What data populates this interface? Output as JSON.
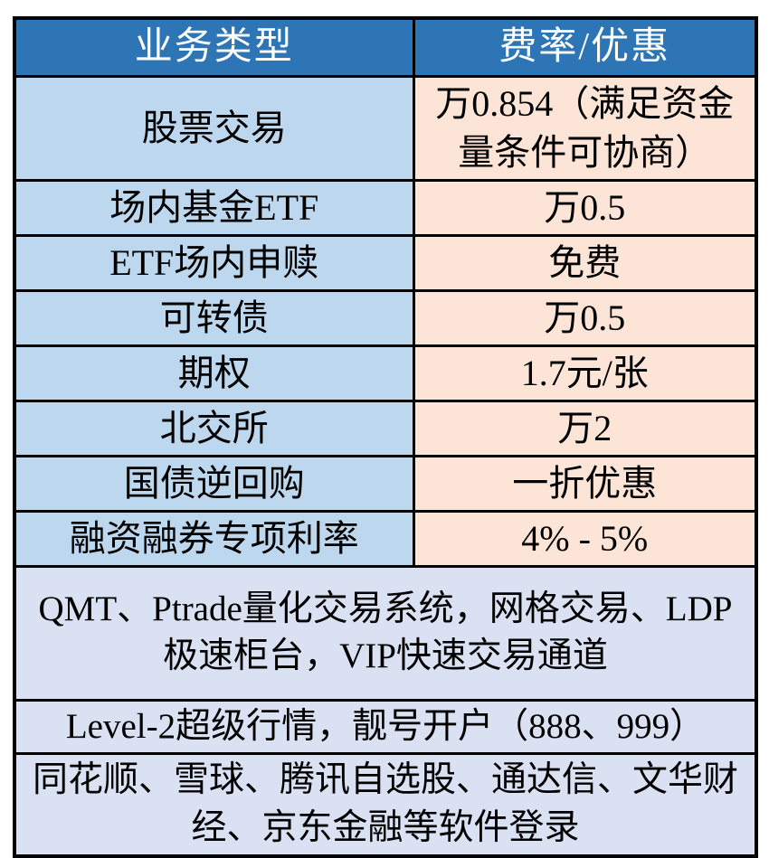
{
  "colors": {
    "header-bg": "#2E75B6",
    "header-text": "#FFFFFF",
    "type-bg": "#BDD7EE",
    "rate-bg": "#FCE4D6",
    "note-bg": "#D9E1F2",
    "border-color": "#000000",
    "body-text": "#000000"
  },
  "table": {
    "headers": [
      {
        "label": "业务类型"
      },
      {
        "label": "费率/优惠"
      }
    ],
    "rows": [
      {
        "type": "股票交易",
        "rate": "万0.854（满足资金量条件可协商）"
      },
      {
        "type": "场内基金ETF",
        "rate": "万0.5"
      },
      {
        "type": "ETF场内申赎",
        "rate": "免费"
      },
      {
        "type": "可转债",
        "rate": "万0.5"
      },
      {
        "type": "期权",
        "rate": "1.7元/张"
      },
      {
        "type": "北交所",
        "rate": "万2"
      },
      {
        "type": "国债逆回购",
        "rate": "一折优惠"
      },
      {
        "type": "融资融券专项利率",
        "rate": "4% - 5%"
      }
    ],
    "notes": [
      {
        "text": "QMT、Ptrade量化交易系统，网格交易、LDP极速柜台，VIP快速交易通道"
      },
      {
        "text": "Level-2超级行情，靓号开户（888、999）"
      },
      {
        "text": "同花顺、雪球、腾讯自选股、通达信、文华财经、京东金融等软件登录"
      }
    ]
  }
}
